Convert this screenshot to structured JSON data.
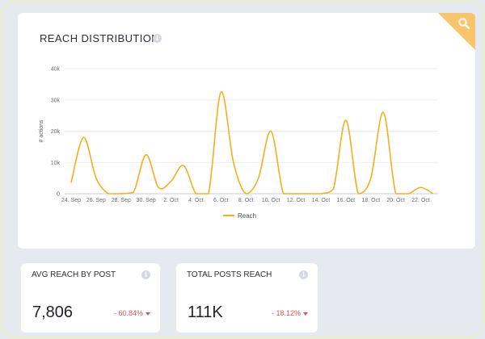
{
  "chart_card": {
    "title": "REACH DISTRIBUTION",
    "info_icon": "info-icon",
    "corner_icon": "search-icon",
    "corner_color": "#f9c46a"
  },
  "chart_data": {
    "type": "line",
    "title": "REACH DISTRIBUTION",
    "ylabel": "# actions",
    "xlabel": "",
    "ylim": [
      0,
      40000
    ],
    "yticks": [
      0,
      10000,
      20000,
      30000,
      40000
    ],
    "ytick_labels": [
      "0",
      "10k",
      "20k",
      "30k",
      "40k"
    ],
    "xtick_labels": [
      "24. Sep",
      "26. Sep",
      "28. Sep",
      "30. Sep",
      "2. Oct",
      "4. Oct",
      "6. Oct",
      "8. Oct",
      "10. Oct",
      "12. Oct",
      "14. Oct",
      "16. Oct",
      "18. Oct",
      "20. Oct",
      "22. Oct"
    ],
    "x_start": "2021-09-24",
    "x": [
      "24 Sep",
      "25 Sep",
      "26 Sep",
      "27 Sep",
      "28 Sep",
      "29 Sep",
      "30 Sep",
      "1 Oct",
      "2 Oct",
      "3 Oct",
      "4 Oct",
      "5 Oct",
      "6 Oct",
      "7 Oct",
      "8 Oct",
      "9 Oct",
      "10 Oct",
      "11 Oct",
      "12 Oct",
      "13 Oct",
      "14 Oct",
      "15 Oct",
      "16 Oct",
      "17 Oct",
      "18 Oct",
      "19 Oct",
      "20 Oct",
      "21 Oct",
      "22 Oct",
      "23 Oct"
    ],
    "series": [
      {
        "name": "Reach",
        "color": "#f2b01e",
        "values": [
          3500,
          18000,
          5000,
          0,
          0,
          500,
          12500,
          2000,
          4000,
          9000,
          0,
          0,
          32500,
          10000,
          0,
          5000,
          20000,
          0,
          0,
          0,
          0,
          1500,
          23500,
          0,
          5000,
          26000,
          0,
          0,
          2000,
          0
        ]
      }
    ],
    "grid": true,
    "legend": "bottom-center"
  },
  "stats": [
    {
      "title": "AVG REACH BY POST",
      "value": "7,806",
      "change": "- 60.84%"
    },
    {
      "title": "TOTAL POSTS REACH",
      "value": "111K",
      "change": "- 18.12%"
    }
  ]
}
